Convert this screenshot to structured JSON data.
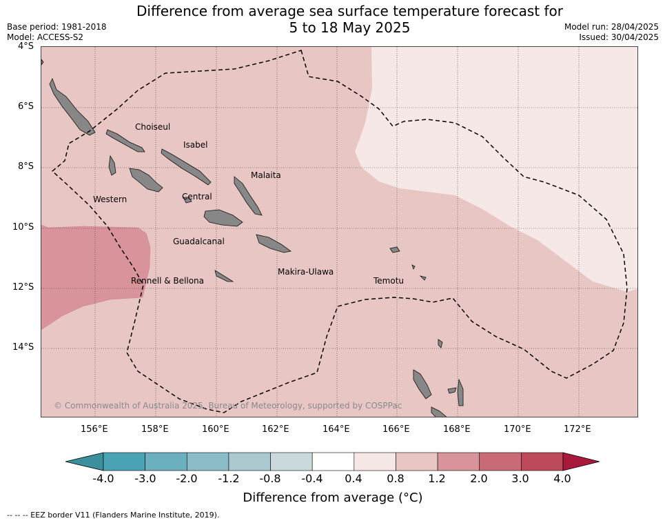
{
  "header": {
    "title_line1": "Difference from average sea surface temperature forecast for",
    "title_line2": "5 to 18 May 2025",
    "base_period": "Base period: 1981-2018",
    "model": "Model: ACCESS-S2",
    "model_run": "Model run: 28/04/2025",
    "issued": "Issued: 30/04/2025"
  },
  "map": {
    "lat_labels": [
      "4°S",
      "6°S",
      "8°S",
      "10°S",
      "12°S",
      "14°S"
    ],
    "lon_labels": [
      "156°E",
      "158°E",
      "160°E",
      "162°E",
      "164°E",
      "166°E",
      "168°E",
      "170°E",
      "172°E"
    ],
    "places": [
      "Choiseul",
      "Isabel",
      "Malaita",
      "Western",
      "Central",
      "Guadalcanal",
      "Makira-Ulawa",
      "Rennell & Bellona",
      "Temotu"
    ],
    "copyright": "© Commonwealth of Australia 2025, Bureau of Meteorology, supported by COSPPac",
    "colors": {
      "land": "#878787",
      "band_0_4_0_8": "#f5e8e7",
      "band_0_8_1_2": "#e8c6c4",
      "band_1_2_2_0": "#d8939b"
    }
  },
  "colorbar": {
    "tick_labels": [
      "-4.0",
      "-3.0",
      "-2.0",
      "-1.2",
      "-0.8",
      "-0.4",
      "0.4",
      "0.8",
      "1.2",
      "2.0",
      "3.0",
      "4.0"
    ],
    "colors": [
      "#4aa3b5",
      "#6cafbf",
      "#8cbcc7",
      "#aac9ce",
      "#c9d9dc",
      "#ffffff",
      "#f5e8e7",
      "#e8c6c4",
      "#d8939b",
      "#c86b77",
      "#bd4a5a"
    ],
    "under_color": "#3c8f9c",
    "over_color": "#a8193a",
    "label": "Difference from average (°C)"
  },
  "legend": {
    "eez": "--  --  -- EEZ border V11 (Flanders Marine Institute, 2019)."
  }
}
